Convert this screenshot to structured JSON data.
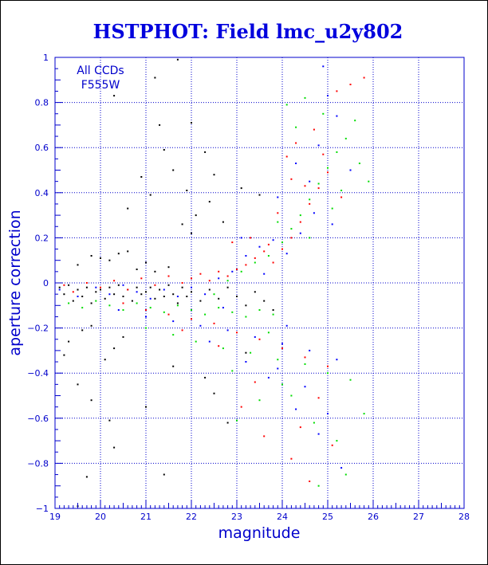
{
  "chart_data": {
    "type": "scatter",
    "title": "HSTPHOT: Field lmc_u2y802",
    "xlabel": "magnitude",
    "ylabel": "aperture correction",
    "xlim": [
      19,
      28
    ],
    "ylim": [
      -1,
      1
    ],
    "x_ticks": [
      19,
      20,
      21,
      22,
      23,
      24,
      25,
      26,
      27,
      28
    ],
    "y_ticks": [
      -1,
      -0.8,
      -0.6,
      -0.4,
      -0.2,
      0,
      0.2,
      0.4,
      0.6,
      0.8,
      1
    ],
    "x_tick_labels": [
      "19",
      "20",
      "21",
      "22",
      "23",
      "24",
      "25",
      "26",
      "27",
      "28"
    ],
    "y_tick_labels": [
      "−1",
      "−0.8",
      "−0.6",
      "−0.4",
      "−0.2",
      "0",
      "0.2",
      "0.4",
      "0.6",
      "0.8",
      "1"
    ],
    "grid": true,
    "annotations": [
      "All CCDs",
      "F555W"
    ],
    "colors": {
      "axes": "#0000cc",
      "title": "#0000dd",
      "grid": "#0000cc"
    },
    "series": [
      {
        "color": "#000000",
        "points": [
          [
            19.1,
            -0.02
          ],
          [
            19.2,
            -0.05
          ],
          [
            19.3,
            -0.01
          ],
          [
            19.4,
            -0.08
          ],
          [
            19.5,
            -0.03
          ],
          [
            19.6,
            -0.06
          ],
          [
            19.7,
            -0.02
          ],
          [
            19.8,
            -0.09
          ],
          [
            19.9,
            -0.04
          ],
          [
            20.0,
            -0.03
          ],
          [
            20.1,
            -0.07
          ],
          [
            20.2,
            -0.02
          ],
          [
            20.3,
            -0.05
          ],
          [
            20.4,
            -0.01
          ],
          [
            20.5,
            -0.06
          ],
          [
            20.6,
            -0.03
          ],
          [
            20.7,
            -0.08
          ],
          [
            20.8,
            -0.02
          ],
          [
            20.9,
            -0.05
          ],
          [
            21.0,
            -0.04
          ],
          [
            21.1,
            -0.02
          ],
          [
            21.2,
            -0.07
          ],
          [
            21.3,
            -0.03
          ],
          [
            21.4,
            -0.06
          ],
          [
            21.5,
            -0.01
          ],
          [
            21.6,
            -0.05
          ],
          [
            21.7,
            -0.09
          ],
          [
            21.8,
            -0.02
          ],
          [
            21.9,
            -0.06
          ],
          [
            22.0,
            -0.04
          ],
          [
            22.2,
            -0.08
          ],
          [
            22.4,
            -0.03
          ],
          [
            22.6,
            -0.07
          ],
          [
            22.8,
            -0.02
          ],
          [
            23.0,
            -0.06
          ],
          [
            23.2,
            -0.1
          ],
          [
            23.4,
            -0.04
          ],
          [
            23.6,
            -0.08
          ],
          [
            23.8,
            -0.12
          ],
          [
            19.5,
            0.08
          ],
          [
            19.8,
            0.12
          ],
          [
            20.0,
            0.11
          ],
          [
            20.2,
            0.1
          ],
          [
            20.4,
            0.13
          ],
          [
            20.6,
            0.14
          ],
          [
            20.8,
            0.06
          ],
          [
            21.0,
            0.09
          ],
          [
            21.2,
            0.05
          ],
          [
            21.5,
            0.07
          ],
          [
            20.3,
            0.83
          ],
          [
            21.2,
            0.91
          ],
          [
            21.7,
            0.99
          ],
          [
            21.3,
            0.7
          ],
          [
            22.0,
            0.71
          ],
          [
            21.4,
            0.59
          ],
          [
            20.9,
            0.47
          ],
          [
            21.6,
            0.5
          ],
          [
            22.3,
            0.58
          ],
          [
            22.5,
            0.48
          ],
          [
            21.9,
            0.41
          ],
          [
            22.1,
            0.3
          ],
          [
            21.8,
            0.26
          ],
          [
            22.4,
            0.36
          ],
          [
            21.1,
            0.39
          ],
          [
            20.6,
            0.33
          ],
          [
            22.7,
            0.27
          ],
          [
            23.1,
            0.42
          ],
          [
            23.5,
            0.39
          ],
          [
            22.0,
            0.22
          ],
          [
            19.3,
            -0.26
          ],
          [
            19.2,
            -0.32
          ],
          [
            19.6,
            -0.21
          ],
          [
            20.1,
            -0.34
          ],
          [
            20.3,
            -0.29
          ],
          [
            19.8,
            -0.19
          ],
          [
            20.5,
            -0.24
          ],
          [
            19.5,
            -0.45
          ],
          [
            19.8,
            -0.52
          ],
          [
            20.2,
            -0.61
          ],
          [
            19.7,
            -0.86
          ],
          [
            19.5,
            -0.99
          ],
          [
            20.3,
            -0.73
          ],
          [
            21.4,
            -0.85
          ],
          [
            22.5,
            -0.49
          ],
          [
            22.8,
            -0.62
          ],
          [
            23.2,
            -0.31
          ],
          [
            22.3,
            -0.42
          ],
          [
            21.0,
            -0.55
          ],
          [
            21.6,
            -0.37
          ]
        ]
      },
      {
        "color": "#ff0000",
        "points": [
          [
            19.2,
            -0.01
          ],
          [
            19.4,
            -0.04
          ],
          [
            19.7,
            0.0
          ],
          [
            20.0,
            -0.02
          ],
          [
            20.3,
            0.01
          ],
          [
            20.6,
            -0.03
          ],
          [
            20.9,
            0.02
          ],
          [
            21.2,
            -0.01
          ],
          [
            21.5,
            0.03
          ],
          [
            21.8,
            0.0
          ],
          [
            22.0,
            0.02
          ],
          [
            22.2,
            0.04
          ],
          [
            22.4,
            0.01
          ],
          [
            22.6,
            0.05
          ],
          [
            22.8,
            0.03
          ],
          [
            23.0,
            0.06
          ],
          [
            23.2,
            0.08
          ],
          [
            23.4,
            0.11
          ],
          [
            23.6,
            0.14
          ],
          [
            23.8,
            0.09
          ],
          [
            22.9,
            0.18
          ],
          [
            23.3,
            0.2
          ],
          [
            23.7,
            0.17
          ],
          [
            24.0,
            0.15
          ],
          [
            24.2,
            0.2
          ],
          [
            24.4,
            0.27
          ],
          [
            24.6,
            0.35
          ],
          [
            24.8,
            0.42
          ],
          [
            25.0,
            0.49
          ],
          [
            24.1,
            0.56
          ],
          [
            24.3,
            0.62
          ],
          [
            24.7,
            0.68
          ],
          [
            24.9,
            0.57
          ],
          [
            25.2,
            0.85
          ],
          [
            25.5,
            0.88
          ],
          [
            25.8,
            0.91
          ],
          [
            24.5,
            0.43
          ],
          [
            25.3,
            0.38
          ],
          [
            23.9,
            0.31
          ],
          [
            24.2,
            0.46
          ],
          [
            20.5,
            -0.09
          ],
          [
            21.0,
            -0.12
          ],
          [
            21.5,
            -0.14
          ],
          [
            22.0,
            -0.16
          ],
          [
            22.5,
            -0.18
          ],
          [
            23.0,
            -0.22
          ],
          [
            23.5,
            -0.25
          ],
          [
            24.0,
            -0.29
          ],
          [
            24.5,
            -0.33
          ],
          [
            25.0,
            -0.37
          ],
          [
            23.1,
            -0.55
          ],
          [
            23.6,
            -0.68
          ],
          [
            24.2,
            -0.78
          ],
          [
            24.6,
            -0.88
          ],
          [
            25.1,
            -0.72
          ],
          [
            22.6,
            -0.28
          ],
          [
            21.8,
            -0.21
          ],
          [
            24.8,
            -0.51
          ],
          [
            24.4,
            -0.64
          ],
          [
            23.4,
            -0.44
          ]
        ]
      },
      {
        "color": "#0000ff",
        "points": [
          [
            19.1,
            -0.03
          ],
          [
            19.5,
            -0.06
          ],
          [
            19.9,
            -0.02
          ],
          [
            20.2,
            -0.05
          ],
          [
            20.5,
            -0.01
          ],
          [
            20.8,
            -0.04
          ],
          [
            21.1,
            -0.07
          ],
          [
            21.4,
            -0.03
          ],
          [
            21.7,
            -0.06
          ],
          [
            22.0,
            -0.02
          ],
          [
            22.3,
            -0.05
          ],
          [
            22.6,
            0.02
          ],
          [
            22.9,
            0.05
          ],
          [
            23.2,
            0.12
          ],
          [
            23.5,
            0.16
          ],
          [
            23.8,
            0.19
          ],
          [
            23.1,
            0.2
          ],
          [
            23.6,
            0.04
          ],
          [
            24.1,
            0.13
          ],
          [
            24.4,
            0.22
          ],
          [
            24.6,
            0.45
          ],
          [
            24.8,
            0.61
          ],
          [
            25.0,
            0.83
          ],
          [
            24.9,
            0.96
          ],
          [
            25.2,
            0.74
          ],
          [
            25.5,
            0.5
          ],
          [
            24.3,
            0.53
          ],
          [
            24.7,
            0.31
          ],
          [
            23.9,
            0.38
          ],
          [
            25.1,
            0.26
          ],
          [
            20.4,
            -0.12
          ],
          [
            21.0,
            -0.15
          ],
          [
            21.6,
            -0.17
          ],
          [
            22.2,
            -0.19
          ],
          [
            22.8,
            -0.21
          ],
          [
            23.4,
            -0.24
          ],
          [
            24.0,
            -0.27
          ],
          [
            24.6,
            -0.3
          ],
          [
            25.2,
            -0.34
          ],
          [
            23.7,
            -0.42
          ],
          [
            24.3,
            -0.56
          ],
          [
            24.8,
            -0.67
          ],
          [
            25.3,
            -0.82
          ],
          [
            23.2,
            -0.35
          ],
          [
            22.4,
            -0.26
          ],
          [
            24.5,
            -0.46
          ],
          [
            25.0,
            -0.58
          ],
          [
            23.9,
            -0.38
          ],
          [
            24.1,
            -0.19
          ],
          [
            22.7,
            -0.11
          ]
        ]
      },
      {
        "color": "#00dd00",
        "points": [
          [
            19.3,
            -0.09
          ],
          [
            19.6,
            -0.11
          ],
          [
            19.9,
            -0.08
          ],
          [
            20.2,
            -0.1
          ],
          [
            20.5,
            -0.12
          ],
          [
            20.8,
            -0.09
          ],
          [
            21.1,
            -0.11
          ],
          [
            21.4,
            -0.13
          ],
          [
            21.7,
            -0.1
          ],
          [
            22.0,
            -0.12
          ],
          [
            22.3,
            -0.14
          ],
          [
            22.6,
            -0.11
          ],
          [
            22.9,
            -0.13
          ],
          [
            23.2,
            -0.15
          ],
          [
            23.5,
            -0.12
          ],
          [
            23.8,
            -0.14
          ],
          [
            22.5,
            -0.05
          ],
          [
            22.8,
            0.01
          ],
          [
            23.1,
            0.05
          ],
          [
            23.4,
            0.09
          ],
          [
            23.7,
            0.12
          ],
          [
            24.0,
            0.18
          ],
          [
            24.2,
            0.24
          ],
          [
            24.4,
            0.3
          ],
          [
            24.6,
            0.37
          ],
          [
            24.8,
            0.44
          ],
          [
            25.0,
            0.51
          ],
          [
            25.2,
            0.58
          ],
          [
            25.4,
            0.64
          ],
          [
            25.6,
            0.72
          ],
          [
            24.1,
            0.79
          ],
          [
            24.3,
            0.69
          ],
          [
            24.5,
            0.82
          ],
          [
            24.9,
            0.75
          ],
          [
            25.3,
            0.41
          ],
          [
            25.7,
            0.53
          ],
          [
            25.9,
            0.45
          ],
          [
            23.9,
            0.27
          ],
          [
            24.6,
            0.2
          ],
          [
            25.1,
            0.33
          ],
          [
            21.0,
            -0.2
          ],
          [
            21.6,
            -0.23
          ],
          [
            22.1,
            -0.26
          ],
          [
            22.7,
            -0.29
          ],
          [
            23.3,
            -0.31
          ],
          [
            23.9,
            -0.34
          ],
          [
            24.5,
            -0.36
          ],
          [
            25.0,
            -0.4
          ],
          [
            25.5,
            -0.43
          ],
          [
            24.2,
            -0.5
          ],
          [
            23.5,
            -0.52
          ],
          [
            24.7,
            -0.62
          ],
          [
            25.2,
            -0.7
          ],
          [
            25.8,
            -0.58
          ],
          [
            22.9,
            -0.39
          ],
          [
            24.0,
            -0.45
          ],
          [
            23.0,
            -0.61
          ],
          [
            25.4,
            -0.85
          ],
          [
            24.8,
            -0.9
          ],
          [
            23.7,
            -0.22
          ]
        ]
      }
    ]
  }
}
